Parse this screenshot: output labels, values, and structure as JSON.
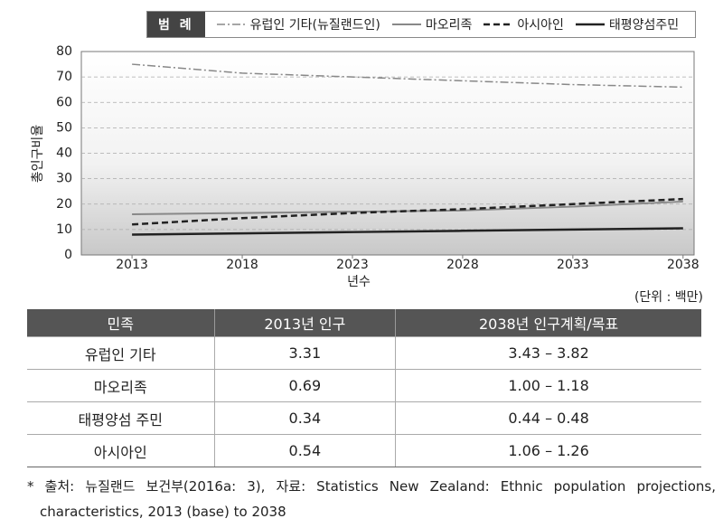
{
  "chart_data": {
    "type": "line",
    "legend_title": "범 례",
    "y_label": "총인구비율",
    "x_label": "년수",
    "x": [
      2013,
      2018,
      2023,
      2028,
      2033,
      2038
    ],
    "xlim": [
      2010.7,
      2038.5
    ],
    "xticks": [
      2013,
      2018,
      2023,
      2028,
      2033,
      2038
    ],
    "ylim": [
      0,
      80
    ],
    "yticks": [
      0,
      10,
      20,
      30,
      40,
      50,
      60,
      70,
      80
    ],
    "grid": true,
    "series": [
      {
        "name": "유럽인 기타(뉴질랜드인)",
        "color": "#888888",
        "dash": "dashdot",
        "values": [
          75,
          71.5,
          70,
          68.5,
          67,
          66
        ]
      },
      {
        "name": "마오리족",
        "color": "#888888",
        "dash": "solid",
        "values": [
          16,
          16.5,
          17,
          17.5,
          19,
          21
        ]
      },
      {
        "name": "아시아인",
        "color": "#222222",
        "dash": "dashed",
        "values": [
          12,
          14.5,
          16.5,
          18,
          20,
          22
        ]
      },
      {
        "name": "태평양섬주민",
        "color": "#222222",
        "dash": "solid",
        "values": [
          8,
          8.5,
          9,
          9.5,
          10,
          10.5
        ]
      }
    ]
  },
  "table": {
    "unit": "(단위 : 백만)",
    "header": [
      "민족",
      "2013년 인구",
      "2038년 인구계획/목표"
    ],
    "rows": [
      [
        "유럽인 기타",
        "3.31",
        "3.43 – 3.82"
      ],
      [
        "마오리족",
        "0.69",
        "1.00 – 1.18"
      ],
      [
        "태평양섬 주민",
        "0.34",
        "0.44 – 0.48"
      ],
      [
        "아시아인",
        "0.54",
        "1.06 – 1.26"
      ]
    ]
  },
  "footnote": "* 출처: 뉴질랜드 보건부(2016a: 3), 자료: Statistics New Zealand: Ethnic population projections, characteristics, 2013 (base) to 2038"
}
